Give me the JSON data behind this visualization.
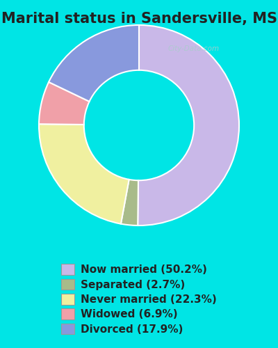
{
  "title": "Marital status in Sandersville, MS",
  "slices": [
    50.2,
    2.7,
    22.3,
    6.9,
    17.9
  ],
  "labels": [
    "Now married (50.2%)",
    "Separated (2.7%)",
    "Never married (22.3%)",
    "Widowed (6.9%)",
    "Divorced (17.9%)"
  ],
  "colors": [
    "#c9b8e8",
    "#a8bb8a",
    "#f0f0a0",
    "#f0a0a8",
    "#8899dd"
  ],
  "background_color": "#c8f0e8",
  "outer_bg_color": "#00e5e5",
  "chart_bg": "#d8eed8",
  "title_fontsize": 15,
  "legend_fontsize": 11,
  "start_angle": 90,
  "watermark": "City-Data.com"
}
